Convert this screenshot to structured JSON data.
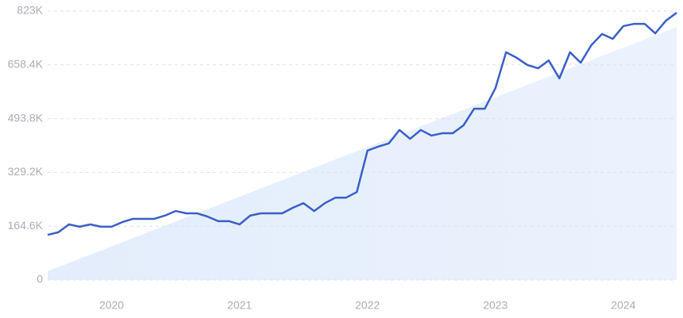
{
  "chart_data": {
    "type": "line",
    "categories": [
      null,
      null,
      null,
      null,
      null,
      null,
      "2020",
      null,
      null,
      null,
      null,
      null,
      null,
      null,
      null,
      null,
      null,
      null,
      "2021",
      null,
      null,
      null,
      null,
      null,
      null,
      null,
      null,
      null,
      null,
      null,
      "2022",
      null,
      null,
      null,
      null,
      null,
      null,
      null,
      null,
      null,
      null,
      null,
      "2023",
      null,
      null,
      null,
      null,
      null,
      null,
      null,
      null,
      null,
      null,
      null,
      "2024",
      null,
      null,
      null,
      null,
      null
    ],
    "series": [
      {
        "color": "#3a5fc6",
        "values": [
          138000,
          146000,
          170000,
          163000,
          170000,
          163000,
          163000,
          177000,
          187000,
          187000,
          187000,
          197000,
          211000,
          204000,
          204000,
          194000,
          180000,
          180000,
          170000,
          197000,
          204000,
          204000,
          204000,
          221000,
          235000,
          211000,
          235000,
          252000,
          252000,
          269000,
          396000,
          408000,
          418000,
          459000,
          432000,
          459000,
          442000,
          449000,
          449000,
          473000,
          524000,
          524000,
          587000,
          697000,
          680000,
          658000,
          648000,
          672000,
          617000,
          697000,
          665000,
          719000,
          753000,
          738000,
          777000,
          784000,
          784000,
          755000,
          794000,
          818000
        ]
      }
    ],
    "ylim": [
      0,
      823000
    ],
    "yticks": [
      0,
      {
        "value": 164600,
        "label": "164.6K"
      },
      {
        "value": 329200,
        "label": "329.2K"
      },
      {
        "value": 493800,
        "label": "493.8K"
      },
      {
        "value": 658400,
        "label": "658.4K"
      },
      {
        "value": 823000,
        "label": "823K"
      }
    ],
    "grid": true
  }
}
